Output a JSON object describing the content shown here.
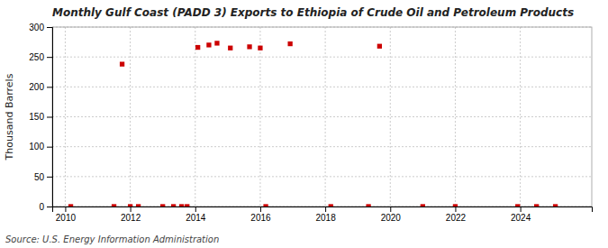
{
  "chart_data": {
    "type": "scatter",
    "title": "Monthly Gulf Coast (PADD 3) Exports to Ethiopia of Crude Oil and Petroleum Products",
    "ylabel": "Thousand Barrels",
    "annotations": [
      "Source: U.S. Energy Information Administration"
    ],
    "x": [
      2010.17,
      2011.5,
      2011.75,
      2012.0,
      2012.25,
      2013.0,
      2013.33,
      2013.58,
      2013.75,
      2014.08,
      2014.42,
      2014.67,
      2015.08,
      2015.67,
      2016.0,
      2016.17,
      2016.92,
      2018.17,
      2019.33,
      2019.67,
      2021.0,
      2022.0,
      2023.92,
      2024.5,
      2025.08
    ],
    "values": [
      0,
      0,
      238,
      0,
      0,
      0,
      0,
      0,
      0,
      266,
      270,
      273,
      265,
      267,
      265,
      0,
      272,
      0,
      0,
      268,
      0,
      0,
      0,
      0,
      0
    ],
    "color": "#cc0000",
    "marker": "square",
    "xlim": [
      2009.6,
      2026.2
    ],
    "ylim": [
      0,
      300
    ],
    "xticks": [
      2010,
      2012,
      2014,
      2016,
      2018,
      2020,
      2022,
      2024
    ],
    "yticks": [
      0,
      50,
      100,
      150,
      200,
      250,
      300
    ],
    "grid": true
  }
}
